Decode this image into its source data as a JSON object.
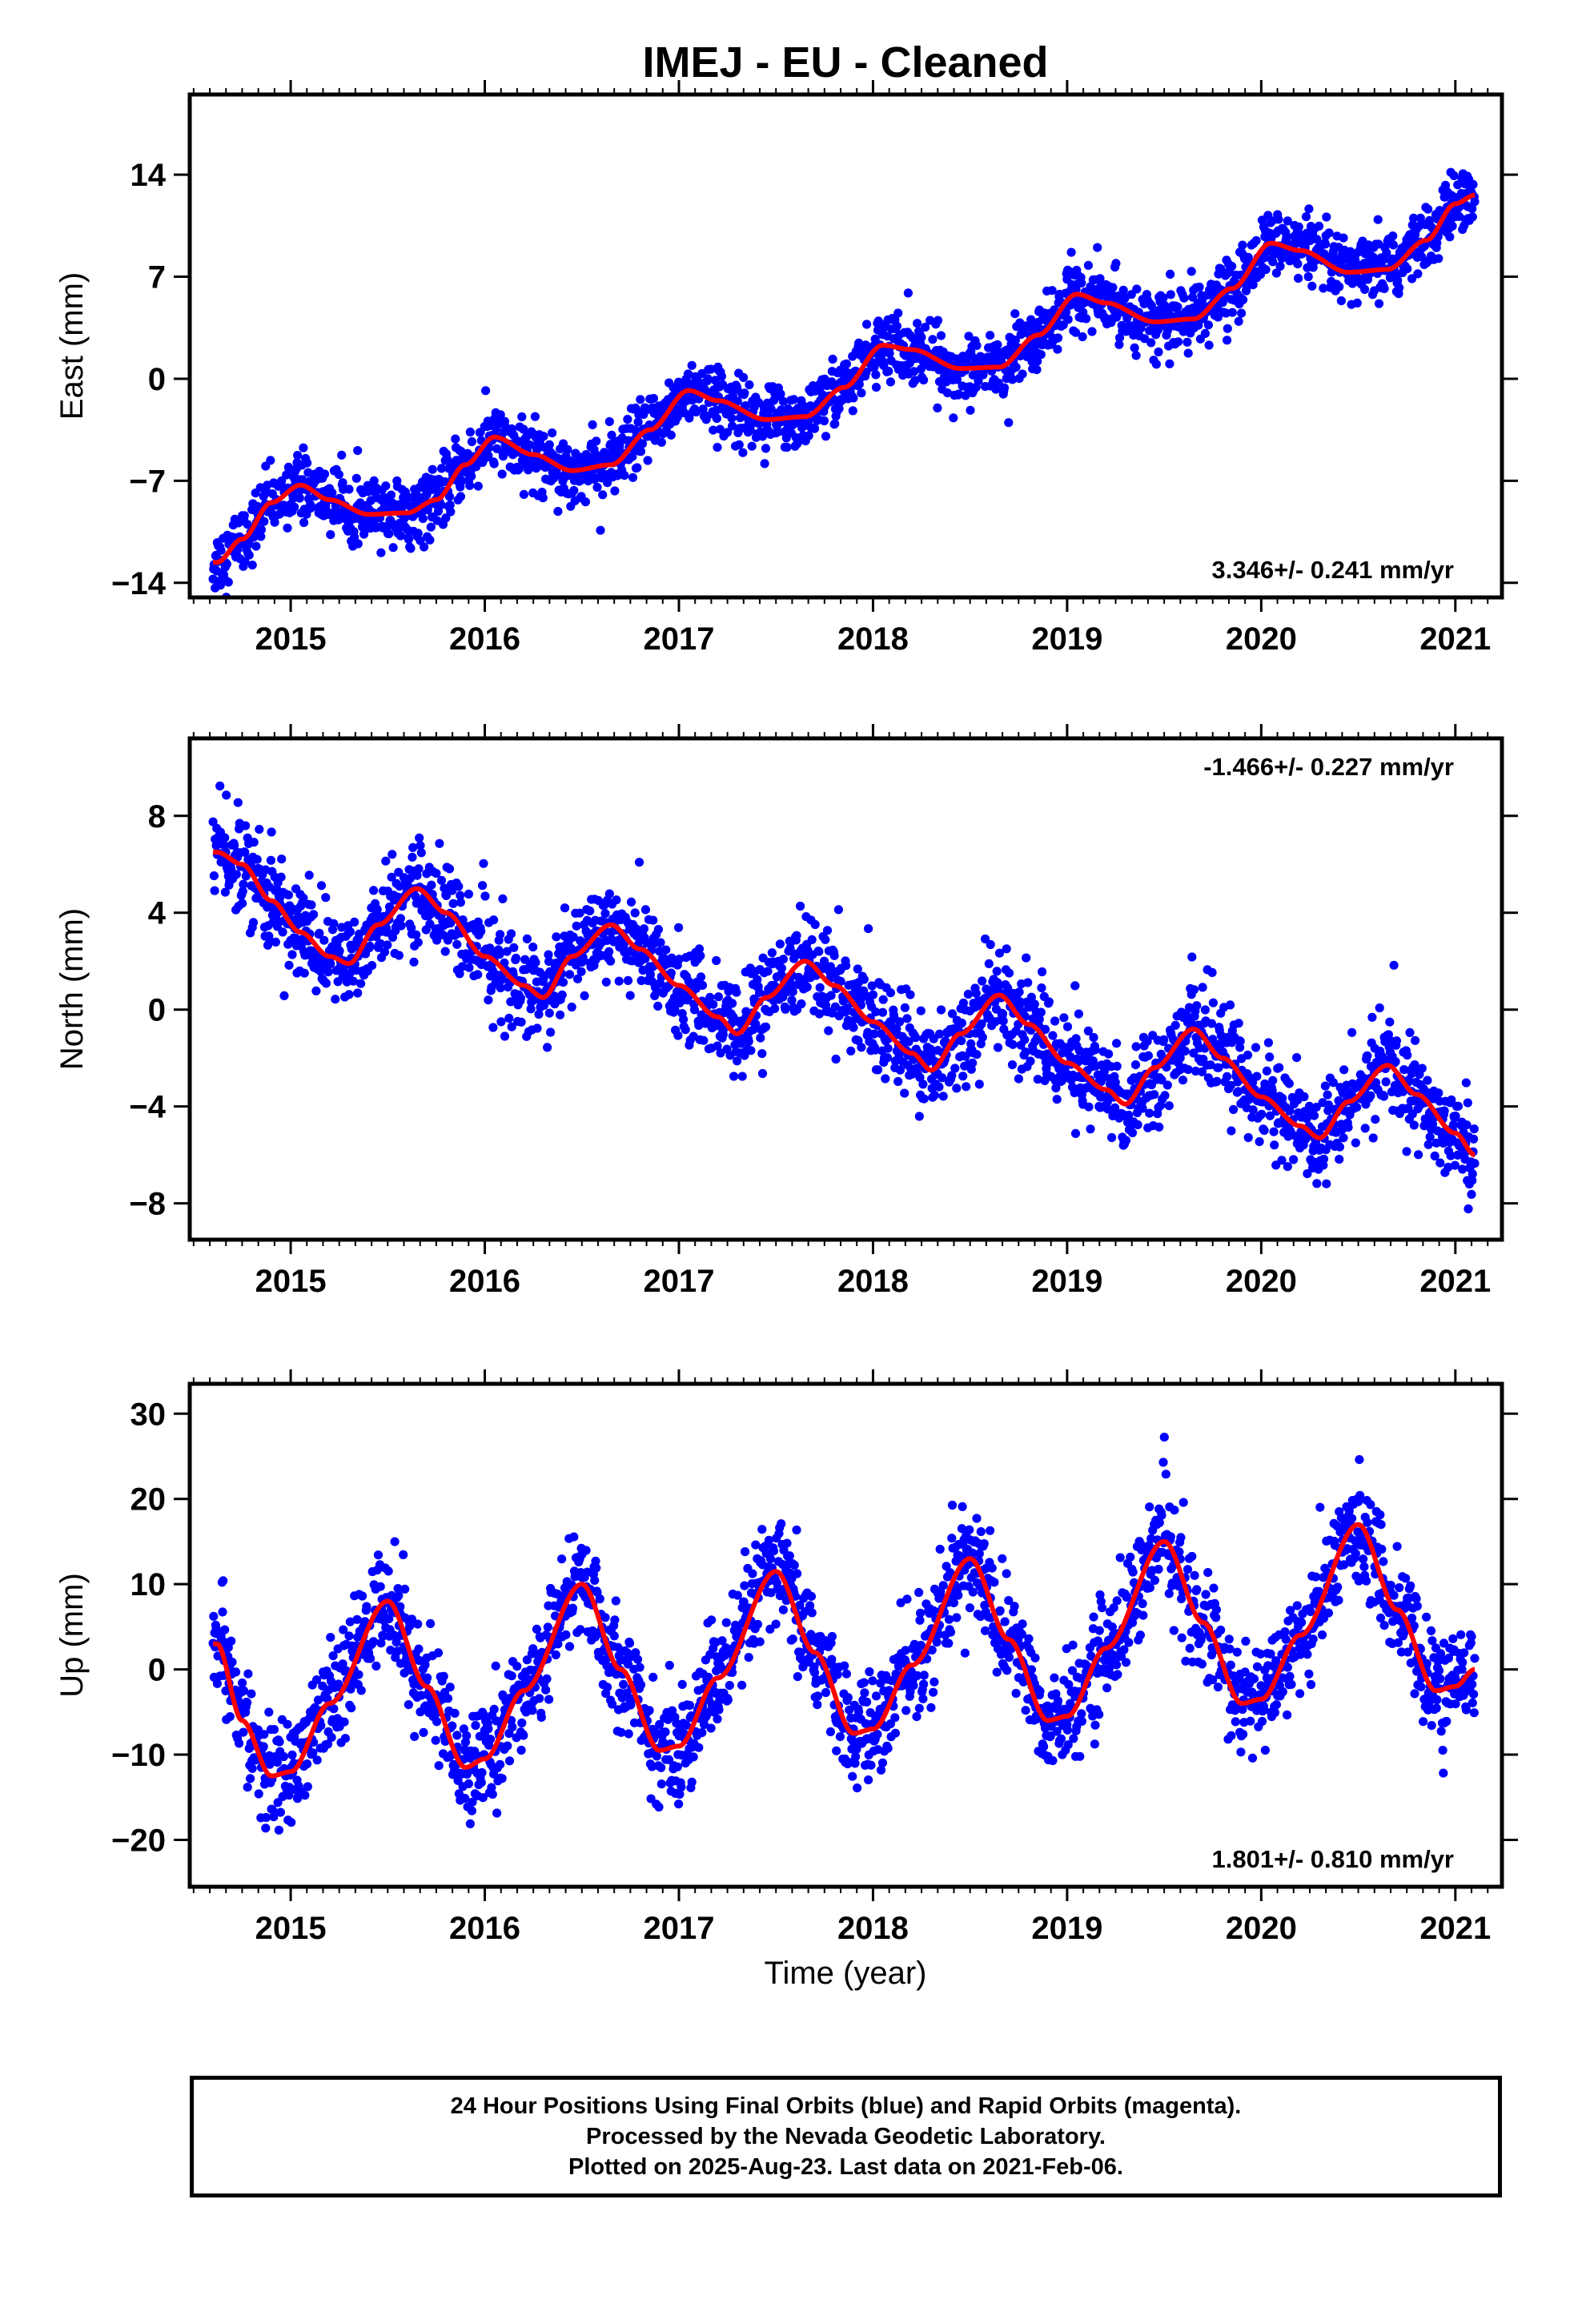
{
  "title": "IMEJ  - EU - Cleaned",
  "xlabel": "Time (year)",
  "colors": {
    "points": "#0000ff",
    "fit": "#ff0000",
    "frame": "#000000"
  },
  "chart_data": [
    {
      "type": "scatter",
      "ylabel": "East (mm)",
      "rate_label": "3.346+/- 0.241 mm/yr",
      "rate_position": "bottom-right",
      "xlim": [
        2014.48,
        2021.24
      ],
      "ylim": [
        -15,
        19.5
      ],
      "xticks": [
        2015,
        2016,
        2017,
        2018,
        2019,
        2020,
        2021
      ],
      "yticks": [
        -14,
        -7,
        0,
        7,
        14
      ],
      "grid": false,
      "data_range": [
        2014.6,
        2021.1
      ],
      "series": [
        {
          "values": [
            [
              2014.62,
              -12.6
            ],
            [
              2014.75,
              -11.0
            ],
            [
              2014.9,
              -8.5
            ],
            [
              2015.05,
              -7.3
            ],
            [
              2015.2,
              -8.3
            ],
            [
              2015.4,
              -9.3
            ],
            [
              2015.6,
              -9.2
            ],
            [
              2015.75,
              -8.3
            ],
            [
              2015.9,
              -5.9
            ],
            [
              2016.05,
              -4.0
            ],
            [
              2016.25,
              -5.2
            ],
            [
              2016.45,
              -6.3
            ],
            [
              2016.65,
              -5.9
            ],
            [
              2016.85,
              -3.5
            ],
            [
              2017.05,
              -0.8
            ],
            [
              2017.2,
              -1.5
            ],
            [
              2017.45,
              -2.8
            ],
            [
              2017.65,
              -2.6
            ],
            [
              2017.85,
              -0.6
            ],
            [
              2018.05,
              2.3
            ],
            [
              2018.2,
              2.0
            ],
            [
              2018.45,
              0.7
            ],
            [
              2018.65,
              0.8
            ],
            [
              2018.85,
              3.0
            ],
            [
              2019.05,
              5.8
            ],
            [
              2019.2,
              5.2
            ],
            [
              2019.45,
              3.9
            ],
            [
              2019.65,
              4.1
            ],
            [
              2019.85,
              6.2
            ],
            [
              2020.05,
              9.3
            ],
            [
              2020.2,
              8.8
            ],
            [
              2020.45,
              7.3
            ],
            [
              2020.65,
              7.5
            ],
            [
              2020.85,
              9.5
            ],
            [
              2021.0,
              12.0
            ],
            [
              2021.1,
              12.6
            ]
          ]
        }
      ]
    },
    {
      "type": "scatter",
      "ylabel": "North (mm)",
      "rate_label": "-1.466+/- 0.227 mm/yr",
      "rate_position": "top-right",
      "xlim": [
        2014.48,
        2021.24
      ],
      "ylim": [
        -9.5,
        11.2
      ],
      "xticks": [
        2015,
        2016,
        2017,
        2018,
        2019,
        2020,
        2021
      ],
      "yticks": [
        -8,
        -4,
        0,
        4,
        8
      ],
      "grid": false,
      "data_range": [
        2014.6,
        2021.1
      ],
      "series": [
        {
          "values": [
            [
              2014.62,
              6.5
            ],
            [
              2014.75,
              6.0
            ],
            [
              2014.9,
              4.5
            ],
            [
              2015.05,
              3.2
            ],
            [
              2015.2,
              2.2
            ],
            [
              2015.3,
              1.9
            ],
            [
              2015.45,
              3.5
            ],
            [
              2015.65,
              5.0
            ],
            [
              2015.8,
              4.0
            ],
            [
              2016.0,
              2.2
            ],
            [
              2016.2,
              1.0
            ],
            [
              2016.3,
              0.5
            ],
            [
              2016.45,
              2.2
            ],
            [
              2016.65,
              3.5
            ],
            [
              2016.8,
              2.5
            ],
            [
              2017.0,
              1.0
            ],
            [
              2017.2,
              -0.3
            ],
            [
              2017.3,
              -1.0
            ],
            [
              2017.45,
              0.5
            ],
            [
              2017.65,
              2.0
            ],
            [
              2017.8,
              1.0
            ],
            [
              2018.0,
              -0.5
            ],
            [
              2018.2,
              -1.8
            ],
            [
              2018.3,
              -2.5
            ],
            [
              2018.45,
              -1.0
            ],
            [
              2018.65,
              0.6
            ],
            [
              2018.8,
              -0.6
            ],
            [
              2019.0,
              -2.2
            ],
            [
              2019.2,
              -3.3
            ],
            [
              2019.3,
              -3.9
            ],
            [
              2019.45,
              -2.4
            ],
            [
              2019.65,
              -0.8
            ],
            [
              2019.8,
              -2.0
            ],
            [
              2020.0,
              -3.6
            ],
            [
              2020.2,
              -4.8
            ],
            [
              2020.3,
              -5.3
            ],
            [
              2020.45,
              -3.8
            ],
            [
              2020.65,
              -2.3
            ],
            [
              2020.8,
              -3.5
            ],
            [
              2021.0,
              -5.1
            ],
            [
              2021.1,
              -6.0
            ]
          ]
        }
      ]
    },
    {
      "type": "scatter",
      "ylabel": "Up (mm)",
      "rate_label": "1.801+/- 0.810 mm/yr",
      "rate_position": "bottom-right",
      "xlim": [
        2014.48,
        2021.24
      ],
      "ylim": [
        -25.5,
        33.5
      ],
      "xticks": [
        2015,
        2016,
        2017,
        2018,
        2019,
        2020,
        2021
      ],
      "yticks": [
        -20,
        -10,
        0,
        10,
        20,
        30
      ],
      "grid": false,
      "data_range": [
        2014.6,
        2021.1
      ],
      "series": [
        {
          "values": [
            [
              2014.62,
              3.0
            ],
            [
              2014.75,
              -6.0
            ],
            [
              2014.9,
              -12.5
            ],
            [
              2015.0,
              -12.0
            ],
            [
              2015.2,
              -4.0
            ],
            [
              2015.5,
              8.0
            ],
            [
              2015.7,
              -2.0
            ],
            [
              2015.9,
              -11.5
            ],
            [
              2016.0,
              -10.5
            ],
            [
              2016.2,
              -2.5
            ],
            [
              2016.5,
              10.0
            ],
            [
              2016.7,
              0.0
            ],
            [
              2016.9,
              -9.5
            ],
            [
              2017.0,
              -9.0
            ],
            [
              2017.2,
              -1.0
            ],
            [
              2017.5,
              11.5
            ],
            [
              2017.7,
              2.0
            ],
            [
              2017.9,
              -7.5
            ],
            [
              2018.0,
              -7.0
            ],
            [
              2018.2,
              0.5
            ],
            [
              2018.5,
              13.0
            ],
            [
              2018.7,
              3.5
            ],
            [
              2018.9,
              -6.0
            ],
            [
              2019.0,
              -5.5
            ],
            [
              2019.2,
              2.5
            ],
            [
              2019.5,
              15.0
            ],
            [
              2019.7,
              5.5
            ],
            [
              2019.9,
              -4.0
            ],
            [
              2020.0,
              -3.5
            ],
            [
              2020.2,
              4.0
            ],
            [
              2020.5,
              17.0
            ],
            [
              2020.7,
              7.0
            ],
            [
              2020.9,
              -2.5
            ],
            [
              2021.0,
              -2.0
            ],
            [
              2021.1,
              0.0
            ]
          ]
        }
      ]
    }
  ],
  "footer": {
    "line1": "24 Hour Positions Using Final Orbits (blue) and Rapid Orbits (magenta).",
    "line2": "Processed by the Nevada Geodetic Laboratory.",
    "line3": "Plotted on 2025-Aug-23. Last data on 2021-Feb-06."
  }
}
